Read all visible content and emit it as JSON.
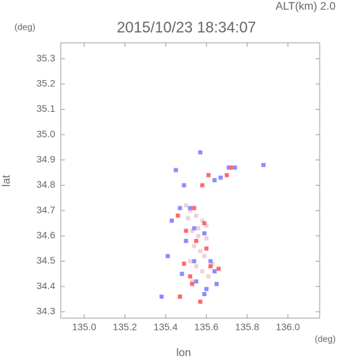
{
  "chart_data": {
    "type": "scatter",
    "title": "2015/10/23 18:34:07",
    "subtitle": "ALT(km) 2.0",
    "x_label": "lon",
    "y_label": "lat",
    "x_unit": "(deg)",
    "y_unit": "(deg)",
    "xlim": [
      134.885,
      136.156
    ],
    "ylim": [
      34.275,
      35.363
    ],
    "xticks": [
      {
        "value": 135.0,
        "label": "135.0"
      },
      135.2,
      135.4,
      135.6,
      135.8,
      {
        "value": 136.0,
        "label": "136.0"
      }
    ],
    "yticks": [
      34.3,
      34.4,
      34.5,
      34.6,
      34.7,
      34.8,
      34.9,
      {
        "value": 35.0,
        "label": "35.0"
      },
      35.1,
      35.2,
      35.3
    ],
    "series": [
      {
        "color": "#f2d0d8",
        "x": [
          135.5,
          135.52,
          135.55,
          135.58,
          135.6,
          135.53,
          135.56,
          135.5,
          135.54,
          135.57,
          135.59,
          135.52,
          135.55,
          135.58,
          135.61,
          135.51,
          135.56,
          135.6,
          135.63,
          135.53
        ],
        "y": [
          34.72,
          34.7,
          34.68,
          34.66,
          34.64,
          34.62,
          34.6,
          34.58,
          34.56,
          34.54,
          34.52,
          34.5,
          34.48,
          34.46,
          34.44,
          34.67,
          34.63,
          34.59,
          34.49,
          34.42
        ]
      },
      {
        "color": "#8c8cff",
        "x": [
          135.45,
          135.49,
          135.57,
          135.67,
          135.74,
          135.88,
          135.43,
          135.41,
          135.5,
          135.55,
          135.6,
          135.64,
          135.47,
          135.38,
          135.52,
          135.54,
          135.59,
          135.47,
          135.54,
          135.59,
          135.65,
          135.71,
          135.64,
          135.62,
          135.48
        ],
        "y": [
          34.86,
          34.8,
          34.93,
          34.83,
          34.87,
          34.88,
          34.66,
          34.52,
          34.58,
          34.42,
          34.39,
          34.46,
          34.36,
          34.36,
          34.71,
          34.63,
          34.61,
          34.71,
          34.5,
          34.37,
          34.41,
          34.87,
          34.82,
          34.5,
          34.45
        ]
      },
      {
        "color": "#ff6a6a",
        "x": [
          135.61,
          135.7,
          135.58,
          135.5,
          135.55,
          135.49,
          135.62,
          135.47,
          135.53,
          135.46,
          135.54,
          135.59,
          135.72,
          135.6,
          135.57,
          135.66,
          135.52
        ],
        "y": [
          34.84,
          34.84,
          34.8,
          34.62,
          34.58,
          34.49,
          34.48,
          34.36,
          34.41,
          34.68,
          34.71,
          34.65,
          34.87,
          34.55,
          34.34,
          34.47,
          34.44
        ]
      }
    ]
  }
}
